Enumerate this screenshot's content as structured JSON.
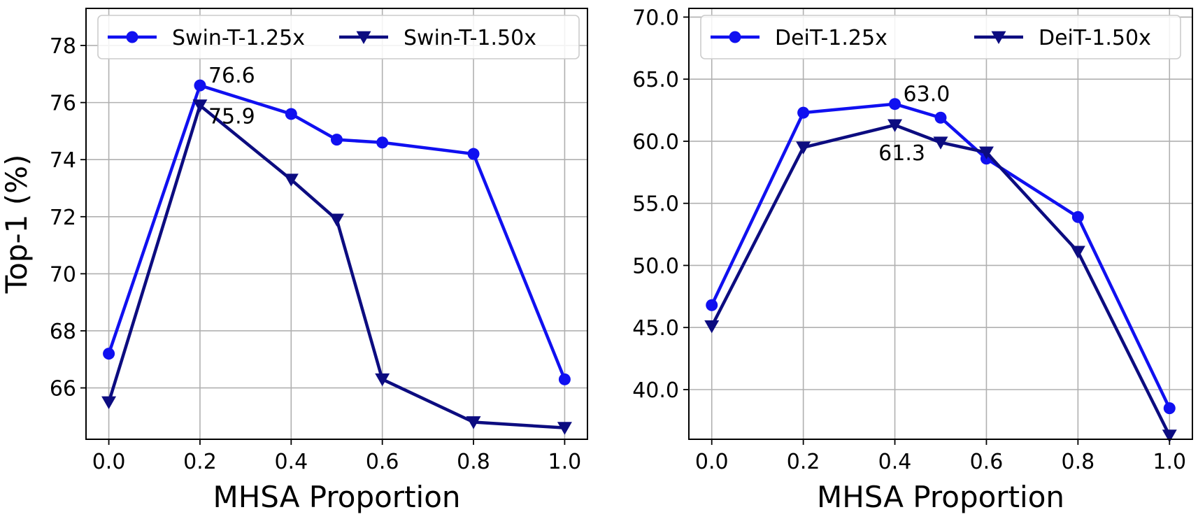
{
  "chart_data": [
    {
      "type": "line",
      "xlabel": "MHSA Proportion",
      "ylabel": "Top-1 (%)",
      "xlim": [
        -0.05,
        1.05
      ],
      "ylim": [
        64.2,
        79.3
      ],
      "xticks": [
        0.0,
        0.2,
        0.4,
        0.6,
        0.8,
        1.0
      ],
      "xtick_labels": [
        "0.0",
        "0.2",
        "0.4",
        "0.6",
        "0.8",
        "1.0"
      ],
      "yticks": [
        66,
        68,
        70,
        72,
        74,
        76,
        78
      ],
      "ytick_labels": [
        "66",
        "68",
        "70",
        "72",
        "74",
        "76",
        "78"
      ],
      "grid": true,
      "legend_position": "top",
      "series": [
        {
          "name": "Swin-T-1.25x",
          "marker": "circle",
          "color": "#1010f0",
          "x": [
            0.0,
            0.2,
            0.4,
            0.5,
            0.6,
            0.8,
            1.0
          ],
          "y": [
            67.2,
            76.6,
            75.6,
            74.7,
            74.6,
            74.2,
            66.3
          ]
        },
        {
          "name": "Swin-T-1.50x",
          "marker": "triangle-down",
          "color": "#0c0c80",
          "x": [
            0.0,
            0.2,
            0.4,
            0.5,
            0.6,
            0.8,
            1.0
          ],
          "y": [
            65.5,
            75.9,
            73.3,
            71.9,
            66.3,
            64.8,
            64.6
          ]
        }
      ],
      "annotations": [
        {
          "text": "76.6",
          "x": 0.2,
          "y": 76.6,
          "placement": "right-above"
        },
        {
          "text": "75.9",
          "x": 0.2,
          "y": 75.9,
          "placement": "right-below"
        }
      ]
    },
    {
      "type": "line",
      "xlabel": "MHSA Proportion",
      "ylabel": "",
      "xlim": [
        -0.05,
        1.05
      ],
      "ylim": [
        36.0,
        70.7
      ],
      "xticks": [
        0.0,
        0.2,
        0.4,
        0.6,
        0.8,
        1.0
      ],
      "xtick_labels": [
        "0.0",
        "0.2",
        "0.4",
        "0.6",
        "0.8",
        "1.0"
      ],
      "yticks": [
        40.0,
        45.0,
        50.0,
        55.0,
        60.0,
        65.0,
        70.0
      ],
      "ytick_labels": [
        "40.0",
        "45.0",
        "50.0",
        "55.0",
        "60.0",
        "65.0",
        "70.0"
      ],
      "grid": true,
      "legend_position": "top",
      "series": [
        {
          "name": "DeiT-1.25x",
          "marker": "circle",
          "color": "#1010f0",
          "x": [
            0.0,
            0.2,
            0.4,
            0.5,
            0.6,
            0.8,
            1.0
          ],
          "y": [
            46.8,
            62.3,
            63.0,
            61.9,
            58.6,
            53.9,
            38.5
          ]
        },
        {
          "name": "DeiT-1.50x",
          "marker": "triangle-down",
          "color": "#0c0c80",
          "x": [
            0.0,
            0.2,
            0.4,
            0.5,
            0.6,
            0.8,
            1.0
          ],
          "y": [
            45.1,
            59.5,
            61.3,
            59.9,
            59.1,
            51.1,
            36.3
          ]
        }
      ],
      "annotations": [
        {
          "text": "63.0",
          "x": 0.4,
          "y": 63.0,
          "placement": "right-above"
        },
        {
          "text": "61.3",
          "x": 0.4,
          "y": 61.3,
          "placement": "below"
        }
      ]
    }
  ]
}
